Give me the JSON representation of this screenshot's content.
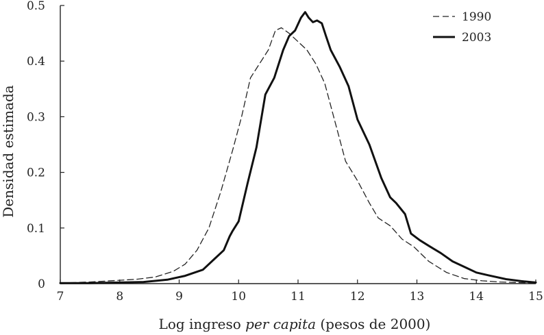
{
  "chart_data": {
    "type": "line",
    "title": "",
    "xlabel_parts": [
      {
        "text": "Log ingreso ",
        "italic": false
      },
      {
        "text": "per capita",
        "italic": true
      },
      {
        "text": " (pesos de 2000)",
        "italic": false
      }
    ],
    "ylabel": "Densidad estimada",
    "xlim": [
      7,
      15
    ],
    "ylim": [
      0,
      0.5
    ],
    "xticks": [
      "7",
      "8",
      "9",
      "10",
      "11",
      "12",
      "13",
      "14",
      "15"
    ],
    "yticks": [
      "0",
      "0.1",
      "0.2",
      "0.3",
      "0.4",
      "0.5"
    ],
    "grid": false,
    "legend_position": "top-right",
    "series": [
      {
        "name": "1990",
        "style": "dashed",
        "color": "#222222",
        "x": [
          7.0,
          7.5,
          8.0,
          8.3,
          8.6,
          8.9,
          9.1,
          9.3,
          9.5,
          9.7,
          9.9,
          10.05,
          10.2,
          10.35,
          10.5,
          10.62,
          10.72,
          10.85,
          11.0,
          11.15,
          11.3,
          11.45,
          11.6,
          11.8,
          12.0,
          12.2,
          12.35,
          12.55,
          12.75,
          12.95,
          13.2,
          13.5,
          13.8,
          14.1,
          14.4,
          14.7,
          15.0
        ],
        "y": [
          0.001,
          0.003,
          0.006,
          0.008,
          0.012,
          0.022,
          0.035,
          0.06,
          0.1,
          0.165,
          0.24,
          0.3,
          0.37,
          0.395,
          0.42,
          0.455,
          0.46,
          0.45,
          0.435,
          0.42,
          0.395,
          0.36,
          0.3,
          0.22,
          0.185,
          0.145,
          0.118,
          0.104,
          0.08,
          0.066,
          0.04,
          0.02,
          0.009,
          0.005,
          0.003,
          0.002,
          0.001
        ]
      },
      {
        "name": "2003",
        "style": "solid",
        "color": "#111111",
        "x": [
          7.0,
          7.5,
          8.0,
          8.4,
          8.8,
          9.1,
          9.4,
          9.6,
          9.75,
          9.85,
          9.9,
          10.0,
          10.15,
          10.3,
          10.45,
          10.6,
          10.75,
          10.85,
          10.95,
          11.05,
          11.12,
          11.18,
          11.25,
          11.32,
          11.4,
          11.47,
          11.55,
          11.7,
          11.85,
          12.0,
          12.2,
          12.4,
          12.55,
          12.65,
          12.8,
          12.9,
          13.05,
          13.2,
          13.4,
          13.6,
          13.8,
          14.0,
          14.2,
          14.5,
          14.8,
          15.0
        ],
        "y": [
          0.001,
          0.001,
          0.002,
          0.003,
          0.007,
          0.014,
          0.025,
          0.045,
          0.06,
          0.085,
          0.095,
          0.112,
          0.18,
          0.245,
          0.34,
          0.37,
          0.42,
          0.445,
          0.455,
          0.478,
          0.488,
          0.478,
          0.47,
          0.473,
          0.468,
          0.445,
          0.42,
          0.39,
          0.355,
          0.295,
          0.25,
          0.19,
          0.155,
          0.145,
          0.125,
          0.09,
          0.078,
          0.068,
          0.055,
          0.04,
          0.03,
          0.02,
          0.015,
          0.008,
          0.004,
          0.002
        ]
      }
    ]
  }
}
